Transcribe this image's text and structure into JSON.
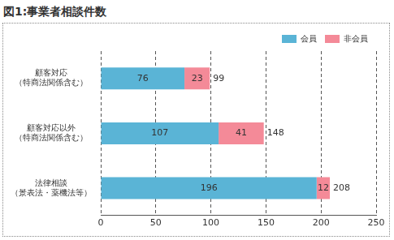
{
  "chart_data": {
    "type": "bar",
    "title": "図1:事業者相談件数",
    "orientation": "horizontal",
    "stacked": true,
    "data_labels": true,
    "grid": true,
    "legend": "top-right",
    "categories": [
      [
        "顧客対応",
        "（特商法関係含む）"
      ],
      [
        "顧客対応以外",
        "（特商法関係含む）"
      ],
      [
        "法律相談",
        "（景表法・薬機法等）"
      ]
    ],
    "series": [
      {
        "name": "会員",
        "color": "#5ab4d6",
        "values": [
          76,
          107,
          196
        ]
      },
      {
        "name": "非会員",
        "color": "#f48a98",
        "values": [
          23,
          41,
          12
        ]
      }
    ],
    "totals": [
      99,
      148,
      208
    ],
    "xlim": [
      0,
      250
    ],
    "xticks": [
      0,
      50,
      100,
      150,
      200,
      250
    ]
  }
}
